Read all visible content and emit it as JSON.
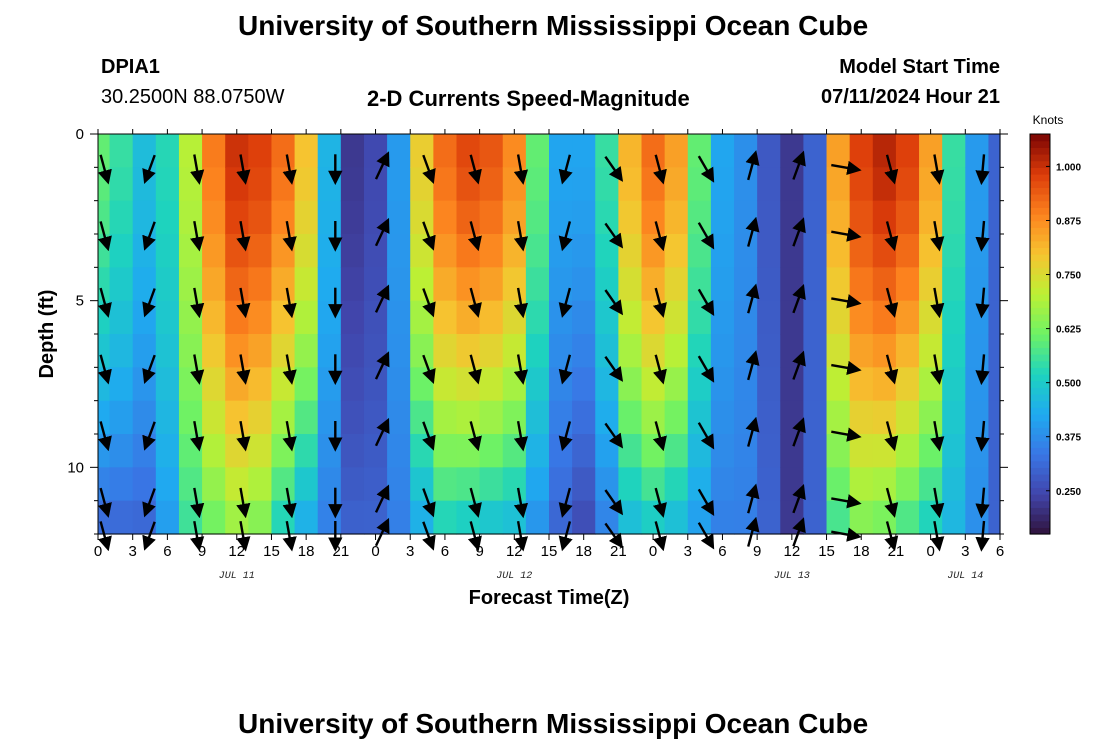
{
  "header": {
    "title": "University of Southern Mississippi Ocean Cube",
    "station_id": "DPIA1",
    "station_coords": "30.2500N  88.0750W",
    "plot_title": "2-D Currents Speed-Magnitude",
    "model_start_label": "Model Start Time",
    "model_start_value": "07/11/2024 Hour 21"
  },
  "footer": {
    "title": "University of Southern Mississippi Ocean Cube"
  },
  "chart_data": {
    "type": "heatmap",
    "title": "2-D Currents Speed-Magnitude",
    "xlabel": "Forecast Time(Z)",
    "ylabel": "Depth (ft)",
    "x_range_hours": [
      0,
      78
    ],
    "x_tick_labels": [
      "0",
      "3",
      "6",
      "9",
      "12",
      "15",
      "18",
      "21",
      "0",
      "3",
      "6",
      "9",
      "12",
      "15",
      "18",
      "21",
      "0",
      "3",
      "6",
      "9",
      "12",
      "15",
      "18",
      "21",
      "0",
      "3",
      "6"
    ],
    "date_labels": [
      {
        "text": "JUL 11",
        "hour": 12
      },
      {
        "text": "JUL 12",
        "hour": 36
      },
      {
        "text": "JUL 13",
        "hour": 60
      },
      {
        "text": "JUL 14",
        "hour": 75
      }
    ],
    "depth_range_ft": [
      0,
      12
    ],
    "y_tick_labels": [
      "0",
      "5",
      "10"
    ],
    "colorbar": {
      "title": "Knots",
      "min": 0.15,
      "max": 1.075,
      "tick_labels": [
        "0.250",
        "0.375",
        "0.500",
        "0.625",
        "0.750",
        "0.875",
        "1.000"
      ],
      "tick_values": [
        0.25,
        0.375,
        0.5,
        0.625,
        0.75,
        0.875,
        1.0
      ]
    },
    "speed_knots_by_hour": [
      {
        "hour": 0,
        "surface": 0.6,
        "bottom": 0.3
      },
      {
        "hour": 2,
        "surface": 0.55,
        "bottom": 0.3
      },
      {
        "hour": 4,
        "surface": 0.47,
        "bottom": 0.3
      },
      {
        "hour": 6,
        "surface": 0.53,
        "bottom": 0.4
      },
      {
        "hour": 8,
        "surface": 0.7,
        "bottom": 0.55
      },
      {
        "hour": 10,
        "surface": 0.9,
        "bottom": 0.6
      },
      {
        "hour": 12,
        "surface": 1.0,
        "bottom": 0.65
      },
      {
        "hour": 14,
        "surface": 0.98,
        "bottom": 0.62
      },
      {
        "hour": 16,
        "surface": 0.92,
        "bottom": 0.5
      },
      {
        "hour": 18,
        "surface": 0.8,
        "bottom": 0.42
      },
      {
        "hour": 20,
        "surface": 0.45,
        "bottom": 0.35
      },
      {
        "hour": 22,
        "surface": 0.22,
        "bottom": 0.3
      },
      {
        "hour": 24,
        "surface": 0.25,
        "bottom": 0.3
      },
      {
        "hour": 26,
        "surface": 0.4,
        "bottom": 0.35
      },
      {
        "hour": 28,
        "surface": 0.78,
        "bottom": 0.42
      },
      {
        "hour": 30,
        "surface": 0.92,
        "bottom": 0.5
      },
      {
        "hour": 32,
        "surface": 0.97,
        "bottom": 0.48
      },
      {
        "hour": 34,
        "surface": 0.95,
        "bottom": 0.46
      },
      {
        "hour": 36,
        "surface": 0.88,
        "bottom": 0.45
      },
      {
        "hour": 38,
        "surface": 0.6,
        "bottom": 0.38
      },
      {
        "hour": 40,
        "surface": 0.42,
        "bottom": 0.3
      },
      {
        "hour": 42,
        "surface": 0.42,
        "bottom": 0.25
      },
      {
        "hour": 44,
        "surface": 0.55,
        "bottom": 0.35
      },
      {
        "hour": 46,
        "surface": 0.82,
        "bottom": 0.45
      },
      {
        "hour": 48,
        "surface": 0.92,
        "bottom": 0.48
      },
      {
        "hour": 50,
        "surface": 0.85,
        "bottom": 0.45
      },
      {
        "hour": 52,
        "surface": 0.6,
        "bottom": 0.4
      },
      {
        "hour": 54,
        "surface": 0.42,
        "bottom": 0.35
      },
      {
        "hour": 56,
        "surface": 0.38,
        "bottom": 0.35
      },
      {
        "hour": 58,
        "surface": 0.28,
        "bottom": 0.3
      },
      {
        "hour": 60,
        "surface": 0.22,
        "bottom": 0.22
      },
      {
        "hour": 62,
        "surface": 0.3,
        "bottom": 0.3
      },
      {
        "hour": 64,
        "surface": 0.85,
        "bottom": 0.55
      },
      {
        "hour": 66,
        "surface": 0.98,
        "bottom": 0.62
      },
      {
        "hour": 68,
        "surface": 1.02,
        "bottom": 0.6
      },
      {
        "hour": 70,
        "surface": 0.98,
        "bottom": 0.55
      },
      {
        "hour": 72,
        "surface": 0.85,
        "bottom": 0.5
      },
      {
        "hour": 74,
        "surface": 0.55,
        "bottom": 0.45
      },
      {
        "hour": 76,
        "surface": 0.4,
        "bottom": 0.38
      },
      {
        "hour": 78,
        "surface": 0.3,
        "bottom": 0.3
      }
    ],
    "vector_direction_deg_by_hour": [
      {
        "hour": 0,
        "dir": 165
      },
      {
        "hour": 4,
        "dir": 200
      },
      {
        "hour": 8,
        "dir": 170
      },
      {
        "hour": 12,
        "dir": 170
      },
      {
        "hour": 16,
        "dir": 170
      },
      {
        "hour": 20,
        "dir": 180
      },
      {
        "hour": 24,
        "dir": 25
      },
      {
        "hour": 28,
        "dir": 160
      },
      {
        "hour": 32,
        "dir": 165
      },
      {
        "hour": 36,
        "dir": 170
      },
      {
        "hour": 40,
        "dir": 195
      },
      {
        "hour": 44,
        "dir": 145
      },
      {
        "hour": 48,
        "dir": 165
      },
      {
        "hour": 52,
        "dir": 150
      },
      {
        "hour": 56,
        "dir": 15
      },
      {
        "hour": 60,
        "dir": 20
      },
      {
        "hour": 64,
        "dir": 100
      },
      {
        "hour": 68,
        "dir": 165
      },
      {
        "hour": 72,
        "dir": 170
      },
      {
        "hour": 76,
        "dir": 185
      }
    ],
    "vector_depths_ft": [
      1,
      3,
      5,
      7,
      9,
      11,
      12
    ]
  },
  "colors": {
    "background": "#ffffff",
    "text": "#000000",
    "vector": "#000000"
  }
}
